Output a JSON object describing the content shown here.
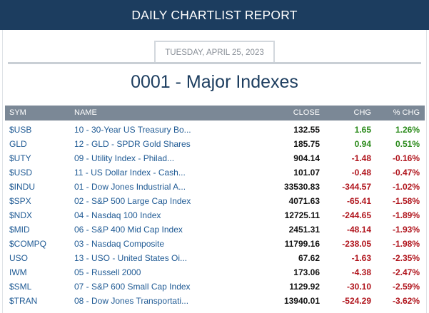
{
  "header": {
    "title": "DAILY CHARTLIST REPORT"
  },
  "report": {
    "date": "TUESDAY, APRIL 25, 2023",
    "title": "0001 - Major Indexes"
  },
  "table": {
    "columns": {
      "sym": "SYM",
      "name": "NAME",
      "close": "CLOSE",
      "chg": "CHG",
      "pct": "% CHG"
    },
    "colors": {
      "up": "#2a8a1a",
      "down": "#b0141c",
      "link": "#1f5a94"
    },
    "rows": [
      {
        "sym": "$USB",
        "name": "10 - 30-Year US Treasury Bo...",
        "close": "132.55",
        "chg": "1.65",
        "pct": "1.26%",
        "dir": "up"
      },
      {
        "sym": "GLD",
        "name": "12 - GLD - SPDR Gold Shares",
        "close": "185.75",
        "chg": "0.94",
        "pct": "0.51%",
        "dir": "up"
      },
      {
        "sym": "$UTY",
        "name": "09 - Utility Index - Philad...",
        "close": "904.14",
        "chg": "-1.48",
        "pct": "-0.16%",
        "dir": "down"
      },
      {
        "sym": "$USD",
        "name": "11 - US Dollar Index - Cash...",
        "close": "101.07",
        "chg": "-0.48",
        "pct": "-0.47%",
        "dir": "down"
      },
      {
        "sym": "$INDU",
        "name": "01 - Dow Jones Industrial A...",
        "close": "33530.83",
        "chg": "-344.57",
        "pct": "-1.02%",
        "dir": "down"
      },
      {
        "sym": "$SPX",
        "name": "02 - S&P 500 Large Cap Index",
        "close": "4071.63",
        "chg": "-65.41",
        "pct": "-1.58%",
        "dir": "down"
      },
      {
        "sym": "$NDX",
        "name": "04 - Nasdaq 100 Index",
        "close": "12725.11",
        "chg": "-244.65",
        "pct": "-1.89%",
        "dir": "down"
      },
      {
        "sym": "$MID",
        "name": "06 - S&P 400 Mid Cap Index",
        "close": "2451.31",
        "chg": "-48.14",
        "pct": "-1.93%",
        "dir": "down"
      },
      {
        "sym": "$COMPQ",
        "name": "03 - Nasdaq Composite",
        "close": "11799.16",
        "chg": "-238.05",
        "pct": "-1.98%",
        "dir": "down"
      },
      {
        "sym": "USO",
        "name": "13 - USO - United States Oi...",
        "close": "67.62",
        "chg": "-1.63",
        "pct": "-2.35%",
        "dir": "down"
      },
      {
        "sym": "IWM",
        "name": "05 - Russell 2000",
        "close": "173.06",
        "chg": "-4.38",
        "pct": "-2.47%",
        "dir": "down"
      },
      {
        "sym": "$SML",
        "name": "07 - S&P 600 Small Cap Index",
        "close": "1129.92",
        "chg": "-30.10",
        "pct": "-2.59%",
        "dir": "down"
      },
      {
        "sym": "$TRAN",
        "name": "08 - Dow Jones Transportati...",
        "close": "13940.01",
        "chg": "-524.29",
        "pct": "-3.62%",
        "dir": "down"
      }
    ]
  }
}
